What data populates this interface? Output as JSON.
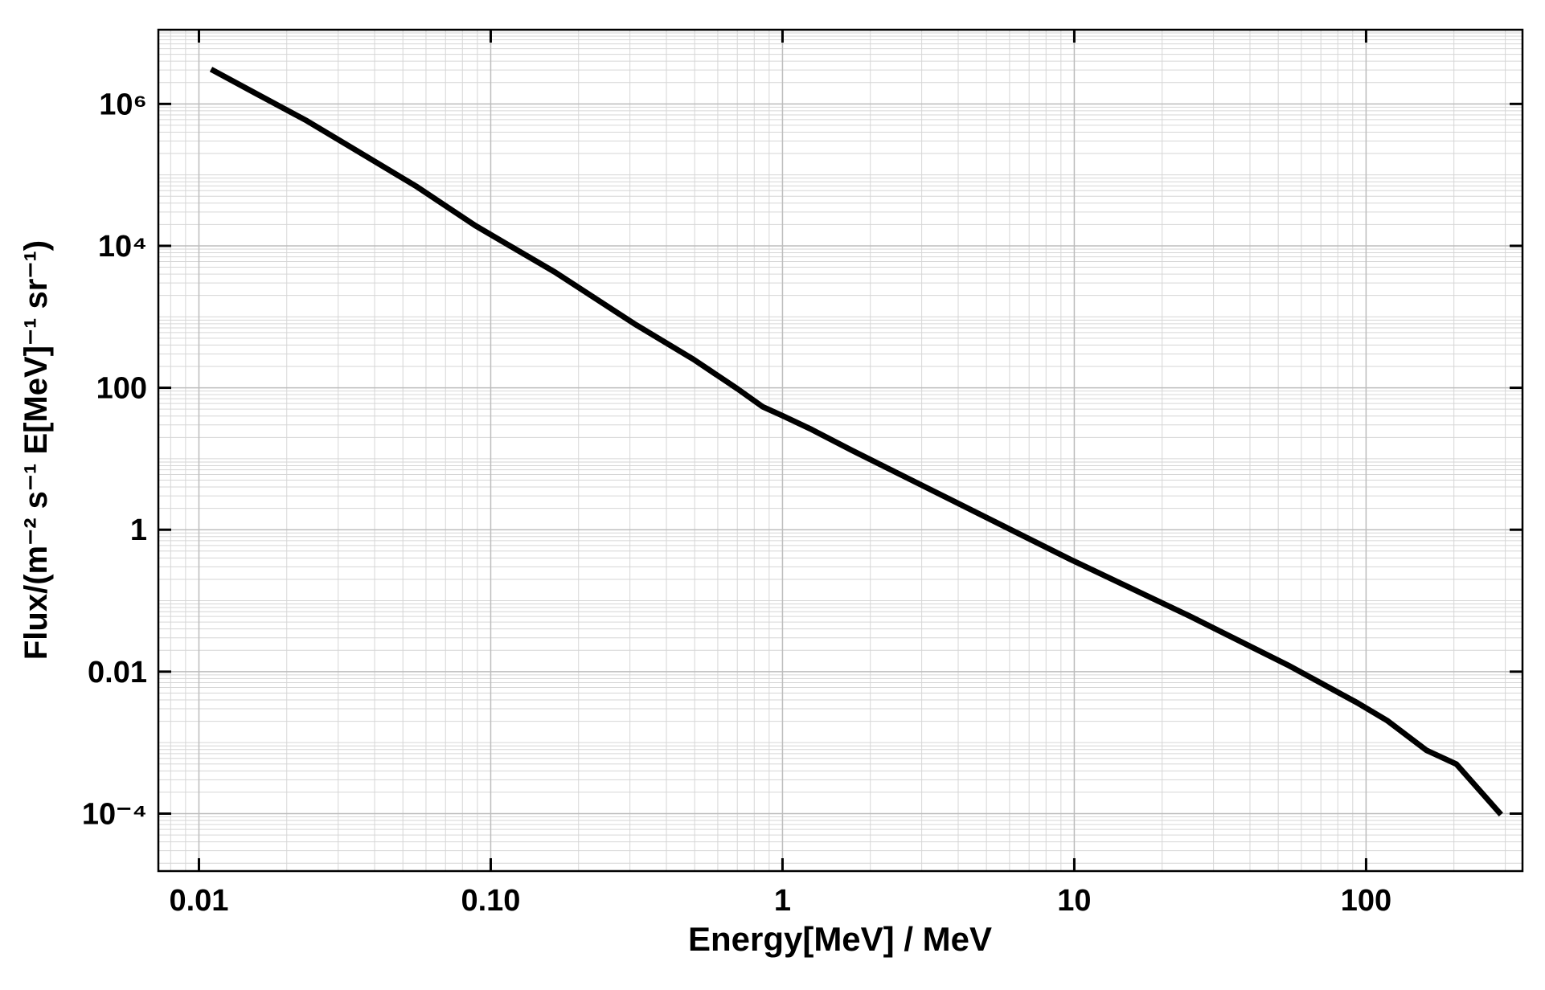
{
  "chart_data": {
    "type": "line",
    "x_label": "Energy[MeV] / MeV",
    "y_label": "Flux/(m⁻² s⁻¹ E[MeV]⁻¹ sr⁻¹)",
    "x": [
      0.011,
      0.0158,
      0.0234,
      0.0347,
      0.0554,
      0.0885,
      0.166,
      0.31,
      0.495,
      0.703,
      0.855,
      1.0,
      1.26,
      1.73,
      3.78,
      9.66,
      24.7,
      53.9,
      93.2,
      118,
      161,
      204,
      290
    ],
    "series": [
      {
        "color": "#000000",
        "values": [
          3080000,
          1380000,
          580000,
          220000,
          69500,
          19300,
          4260,
          802,
          252,
          96,
          54,
          40.5,
          25.8,
          13.1,
          2.64,
          0.384,
          0.0615,
          0.0124,
          0.00365,
          0.00205,
          0.00078,
          0.000498,
          9.7e-05
        ]
      }
    ],
    "xlim": [
      0.00726,
      343.6
    ],
    "ylim": [
      1.55e-05,
      11100000
    ],
    "x_log": true,
    "y_log": true,
    "xticks": [
      0.01,
      {
        "value": 0.1,
        "label": "0.10"
      },
      1,
      10,
      100
    ],
    "yticks": [
      {
        "value": 0.0001,
        "label": "10⁻⁴"
      },
      0.01,
      1,
      100,
      {
        "value": 10000,
        "label": "10⁴"
      },
      {
        "value": 1000000,
        "label": "10⁶"
      }
    ],
    "grid": true
  }
}
